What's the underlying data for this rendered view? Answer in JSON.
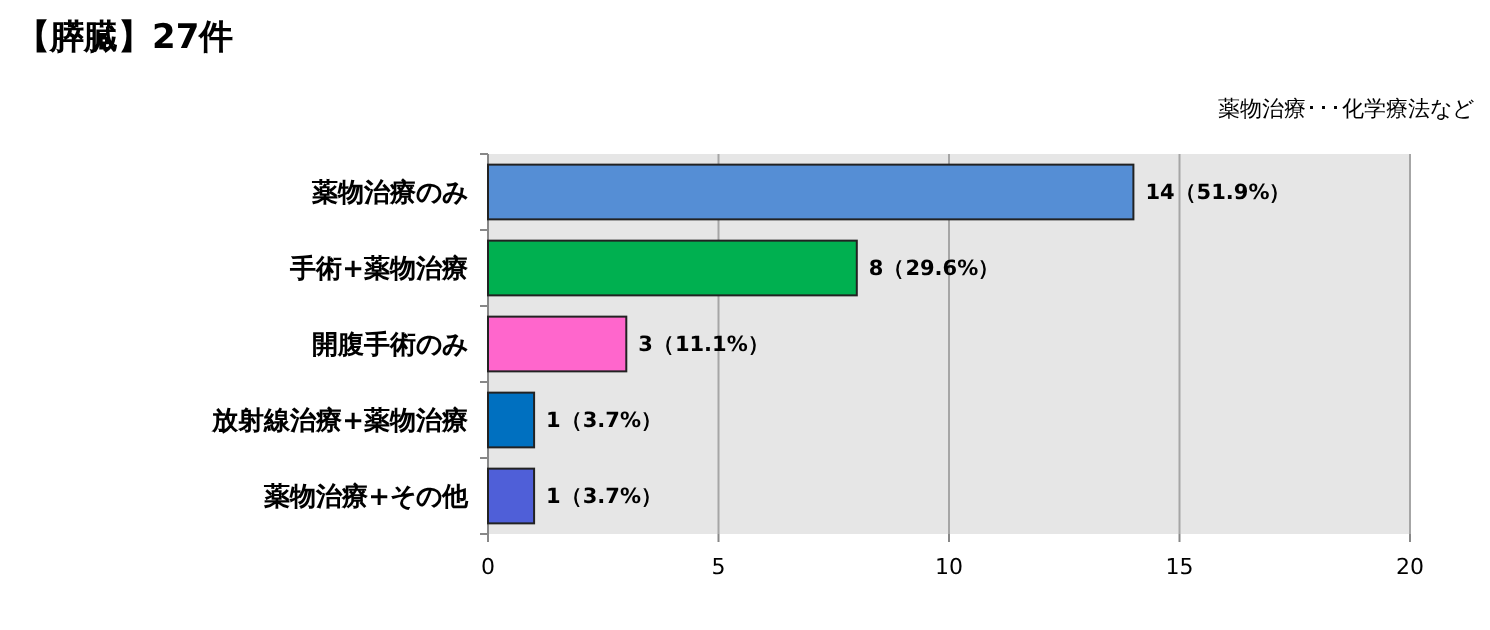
{
  "chart_data": {
    "type": "bar",
    "orientation": "horizontal",
    "title": "【膵臓】27件",
    "annotations": [
      "薬物治療･･･化学療法など"
    ],
    "categories": [
      "薬物治療のみ",
      "手術+薬物治療",
      "開腹手術のみ",
      "放射線治療+薬物治療",
      "薬物治療+その他"
    ],
    "values": [
      14,
      8,
      3,
      1,
      1
    ],
    "colors": [
      "#558ed5",
      "#00b050",
      "#ff66cc",
      "#0070c0",
      "#4f5fd8"
    ],
    "value_labels": [
      "14（51.9%）",
      "8（29.6%）",
      "3（11.1%）",
      "1（3.7%）",
      "1（3.7%）"
    ],
    "xlim": [
      0,
      20
    ],
    "xticks": [
      0,
      5,
      10,
      15,
      20
    ],
    "grid": "x"
  }
}
